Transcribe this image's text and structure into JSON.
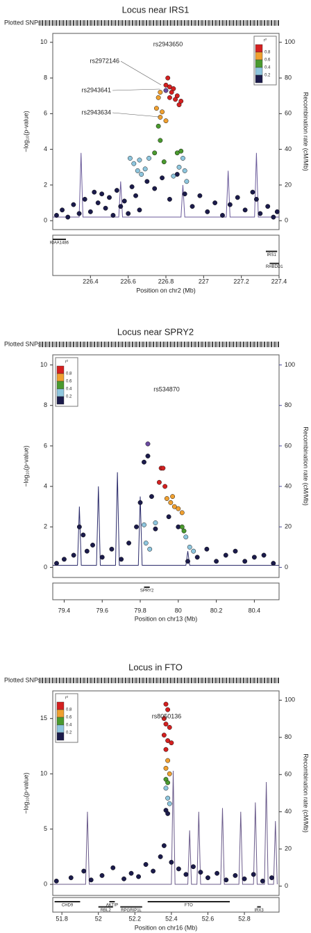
{
  "chart_data": [
    {
      "type": "scatter",
      "title": "Locus near IRS1",
      "snp_label": "Plotted SNPs",
      "xlabel": "Position on chr2 (Mb)",
      "ylabel": "−log₁₀(p-value)",
      "y2label": "Recombination rate (cM/Mb)",
      "xlim": [
        226.2,
        227.4
      ],
      "xticks": [
        226.4,
        226.6,
        226.8,
        227,
        227.2,
        227.4
      ],
      "ylim": [
        -0.5,
        10.5
      ],
      "yticks": [
        0,
        2,
        4,
        6,
        8,
        10
      ],
      "y2lim": [
        -5,
        105
      ],
      "y2ticks": [
        0,
        20,
        40,
        60,
        80,
        100
      ],
      "y2_color": "#333333",
      "legend": {
        "corner": "top-right",
        "title": "r²",
        "labels": [
          0.8,
          0.6,
          0.4,
          0.2
        ],
        "colors": [
          "#d42020",
          "#f0a030",
          "#4a9a2e",
          "#8ec6de",
          "#1b1b4b"
        ]
      },
      "annotations": [
        "rs2943650",
        "rs2972146",
        "rs2943641",
        "rs2943634"
      ],
      "genes": [
        {
          "name": "KIAA1486",
          "start": 226.2,
          "end": 226.27
        },
        {
          "name": "IRS1",
          "start": 227.33,
          "end": 227.39
        },
        {
          "name": "RHBDD1",
          "start": 227.35,
          "end": 227.4
        }
      ],
      "series": [
        {
          "color": "#6a5a9a",
          "axis": "y2",
          "x": [
            226.2,
            226.34,
            226.35,
            226.36,
            226.55,
            226.56,
            226.57,
            226.88,
            226.89,
            226.9,
            227.12,
            227.13,
            227.14,
            227.27,
            227.28,
            227.29,
            227.4
          ],
          "values": [
            2,
            2,
            38,
            2,
            2,
            22,
            2,
            2,
            20,
            2,
            2,
            28,
            2,
            2,
            38,
            2,
            2
          ]
        },
        {
          "color": "#1b1b4b",
          "x": [
            226.22,
            226.25,
            226.28,
            226.31,
            226.34,
            226.37,
            226.4,
            226.42,
            226.44,
            226.46,
            226.48,
            226.5,
            226.52,
            226.54,
            226.56,
            226.58,
            226.6,
            226.62,
            226.64,
            226.66,
            226.7,
            226.74,
            226.78,
            226.82,
            226.86,
            226.9,
            226.94,
            226.98,
            227.02,
            227.06,
            227.1,
            227.14,
            227.18,
            227.22,
            227.26,
            227.28,
            227.3,
            227.34,
            227.37,
            227.39
          ],
          "values": [
            0.3,
            0.6,
            0.2,
            0.9,
            0.4,
            1.2,
            0.5,
            1.6,
            1.0,
            1.5,
            0.7,
            1.3,
            0.3,
            1.7,
            0.8,
            1.1,
            0.4,
            1.9,
            1.4,
            0.6,
            2.2,
            1.8,
            2.4,
            1.2,
            2.6,
            1.5,
            0.8,
            1.4,
            0.5,
            1.0,
            0.3,
            0.9,
            1.3,
            0.6,
            1.6,
            1.2,
            0.4,
            0.8,
            0.2,
            0.5
          ]
        },
        {
          "color": "#8ec6de",
          "x": [
            226.61,
            226.63,
            226.65,
            226.67,
            226.69,
            226.71,
            226.66,
            226.84,
            226.87,
            226.89,
            226.9,
            226.91
          ],
          "values": [
            3.5,
            3.2,
            2.8,
            2.6,
            2.9,
            3.5,
            3.4,
            2.5,
            3.0,
            3.5,
            2.8,
            2.2
          ]
        },
        {
          "color": "#4a9a2e",
          "x": [
            226.74,
            226.77,
            226.79,
            226.86,
            226.88,
            226.76
          ],
          "values": [
            3.8,
            4.5,
            3.3,
            3.8,
            3.9,
            5.3
          ]
        },
        {
          "color": "#f0a030",
          "x": [
            226.75,
            226.76,
            226.77,
            226.78,
            226.8,
            226.77
          ],
          "values": [
            6.3,
            6.9,
            7.2,
            6.1,
            5.6,
            5.8
          ]
        },
        {
          "color": "#d42020",
          "x": [
            226.8,
            226.81,
            226.82,
            226.83,
            226.84,
            226.85,
            226.86,
            226.87,
            226.88,
            226.82
          ],
          "values": [
            7.6,
            8.0,
            7.5,
            7.2,
            7.4,
            6.8,
            7.0,
            6.5,
            6.7,
            6.9
          ]
        },
        {
          "color": "#6a4aa0",
          "x": [
            226.8
          ],
          "values": [
            7.3
          ]
        }
      ]
    },
    {
      "type": "scatter",
      "title": "Locus near SPRY2",
      "snp_label": "Plotted SNPs",
      "xlabel": "Position on chr13 (Mb)",
      "ylabel": "−log₁₀(p-value)",
      "y2label": "Recombination rate (cM/Mb)",
      "xlim": [
        79.34,
        80.53
      ],
      "xticks": [
        79.4,
        79.6,
        79.8,
        80,
        80.2,
        80.4
      ],
      "ylim": [
        -0.5,
        10.5
      ],
      "yticks": [
        0,
        2,
        4,
        6,
        8,
        10
      ],
      "y2lim": [
        -5,
        105
      ],
      "y2ticks": [
        0,
        20,
        40,
        60,
        80,
        100
      ],
      "y2_color": "#4a4a9a",
      "legend": {
        "corner": "top-left",
        "title": "r²",
        "labels": [
          0.8,
          0.6,
          0.4,
          0.2
        ],
        "colors": [
          "#d42020",
          "#f0a030",
          "#4a9a2e",
          "#8ec6de",
          "#1b1b4b"
        ]
      },
      "annotations": [
        "rs534870"
      ],
      "genes": [
        {
          "name": "SPRY2",
          "start": 79.82,
          "end": 79.85
        }
      ],
      "series": [
        {
          "color": "#2a2a6a",
          "axis": "y2",
          "x": [
            79.34,
            79.47,
            79.48,
            79.49,
            79.57,
            79.58,
            79.59,
            79.67,
            79.68,
            79.69,
            79.79,
            79.8,
            79.81,
            80.04,
            80.05,
            80.06,
            80.53
          ],
          "values": [
            1,
            1,
            30,
            1,
            1,
            40,
            1,
            1,
            47,
            1,
            1,
            35,
            1,
            1,
            8,
            1,
            1
          ]
        },
        {
          "color": "#1b1b4b",
          "x": [
            79.36,
            79.4,
            79.45,
            79.48,
            79.5,
            79.52,
            79.55,
            79.6,
            79.65,
            79.7,
            79.74,
            79.78,
            79.8,
            79.82,
            79.84,
            79.86,
            79.88,
            79.95,
            80.0,
            80.05,
            80.1,
            80.15,
            80.2,
            80.25,
            80.3,
            80.35,
            80.4,
            80.45,
            80.5
          ],
          "values": [
            0.2,
            0.4,
            0.6,
            2.0,
            1.6,
            0.8,
            1.1,
            0.5,
            0.9,
            0.4,
            1.2,
            2.0,
            3.2,
            5.2,
            5.5,
            3.5,
            1.9,
            2.5,
            2.0,
            0.3,
            0.5,
            0.9,
            0.3,
            0.6,
            0.8,
            0.3,
            0.5,
            0.6,
            0.2
          ]
        },
        {
          "color": "#8ec6de",
          "x": [
            79.83,
            79.85,
            79.88,
            80.04,
            80.06,
            80.08,
            79.82
          ],
          "values": [
            1.2,
            0.9,
            2.2,
            1.5,
            1.0,
            0.8,
            2.1
          ]
        },
        {
          "color": "#4a9a2e",
          "x": [
            80.02,
            80.03
          ],
          "values": [
            2.0,
            1.8
          ]
        },
        {
          "color": "#f0a030",
          "x": [
            79.94,
            79.96,
            79.98,
            80.0,
            80.02,
            79.97
          ],
          "values": [
            3.4,
            3.2,
            3.0,
            2.9,
            2.7,
            3.5
          ]
        },
        {
          "color": "#d42020",
          "x": [
            79.91,
            79.92,
            79.93,
            79.9
          ],
          "values": [
            4.9,
            4.9,
            4.0,
            4.2
          ]
        },
        {
          "color": "#6a4aa0",
          "x": [
            79.84
          ],
          "values": [
            6.1
          ]
        }
      ]
    },
    {
      "type": "scatter",
      "title": "Locus in FTO",
      "snp_label": "Plotted SNPs",
      "xlabel": "Position on chr16 (Mb)",
      "ylabel": "−log₁₀(p-value)",
      "y2label": "Recombination rate (cM/Mb)",
      "xlim": [
        51.75,
        52.99
      ],
      "xticks": [
        51.8,
        52,
        52.2,
        52.4,
        52.6,
        52.8
      ],
      "ylim": [
        -1,
        17.5
      ],
      "yticks": [
        0,
        5,
        10,
        15
      ],
      "y2lim": [
        -5,
        105
      ],
      "y2ticks": [
        0,
        20,
        40,
        60,
        80,
        100
      ],
      "y2_color": "#333333",
      "legend": {
        "corner": "top-left",
        "title": "r²",
        "labels": [
          0.8,
          0.6,
          0.4,
          0.2
        ],
        "colors": [
          "#d42020",
          "#f0a030",
          "#4a9a2e",
          "#8ec6de",
          "#1b1b4b"
        ]
      },
      "annotations": [
        "rs8050136"
      ],
      "genes": [
        {
          "name": "CHD9",
          "start": 51.76,
          "end": 51.9
        },
        {
          "name": "RBL2",
          "start": 52.0,
          "end": 52.08
        },
        {
          "name": "AKTIP",
          "start": 52.06,
          "end": 52.09
        },
        {
          "name": "RPGRIP1L",
          "start": 52.12,
          "end": 52.24
        },
        {
          "name": "FTO",
          "start": 52.27,
          "end": 52.72
        },
        {
          "name": "IRX3",
          "start": 52.87,
          "end": 52.89
        }
      ],
      "series": [
        {
          "color": "#6a5a8a",
          "axis": "y2",
          "x": [
            51.75,
            51.93,
            51.94,
            51.95,
            52.4,
            52.41,
            52.42,
            52.49,
            52.5,
            52.51,
            52.54,
            52.55,
            52.56,
            52.67,
            52.68,
            52.69,
            52.77,
            52.78,
            52.79,
            52.85,
            52.86,
            52.87,
            52.91,
            52.92,
            52.93,
            52.96,
            52.97,
            52.98
          ],
          "values": [
            1,
            1,
            40,
            1,
            1,
            62,
            1,
            1,
            30,
            1,
            1,
            40,
            1,
            1,
            42,
            1,
            1,
            40,
            1,
            1,
            45,
            1,
            1,
            56,
            1,
            1,
            35,
            1
          ]
        },
        {
          "color": "#1b1b4b",
          "x": [
            52.37,
            52.38,
            51.77,
            51.85,
            51.92,
            51.96,
            52.02,
            52.08,
            52.14,
            52.18,
            52.22,
            52.26,
            52.3,
            52.34,
            52.36,
            52.4,
            52.44,
            52.48,
            52.52,
            52.56,
            52.6,
            52.65,
            52.7,
            52.75,
            52.8,
            52.85,
            52.9,
            52.95
          ],
          "values": [
            6.7,
            6.4,
            0.3,
            0.6,
            1.2,
            0.4,
            0.8,
            1.5,
            0.5,
            1.0,
            0.7,
            1.8,
            1.2,
            2.5,
            3.5,
            2.0,
            1.4,
            0.9,
            1.6,
            1.1,
            0.6,
            1.0,
            0.4,
            0.8,
            0.5,
            0.9,
            0.3,
            0.6
          ]
        },
        {
          "color": "#8ec6de",
          "x": [
            52.37,
            52.38,
            52.39
          ],
          "values": [
            8.7,
            7.8,
            7.3
          ]
        },
        {
          "color": "#4a9a2e",
          "x": [
            52.37,
            52.38
          ],
          "values": [
            9.5,
            9.2
          ]
        },
        {
          "color": "#f0a030",
          "x": [
            52.38,
            52.37,
            52.39
          ],
          "values": [
            11.2,
            10.5,
            10.0
          ]
        },
        {
          "color": "#d42020",
          "x": [
            52.37,
            52.38,
            52.36,
            52.37,
            52.39,
            52.36,
            52.38,
            52.4,
            52.37
          ],
          "values": [
            16.3,
            15.8,
            15.0,
            14.5,
            14.2,
            13.5,
            13.0,
            12.8,
            12.2
          ]
        }
      ]
    }
  ]
}
